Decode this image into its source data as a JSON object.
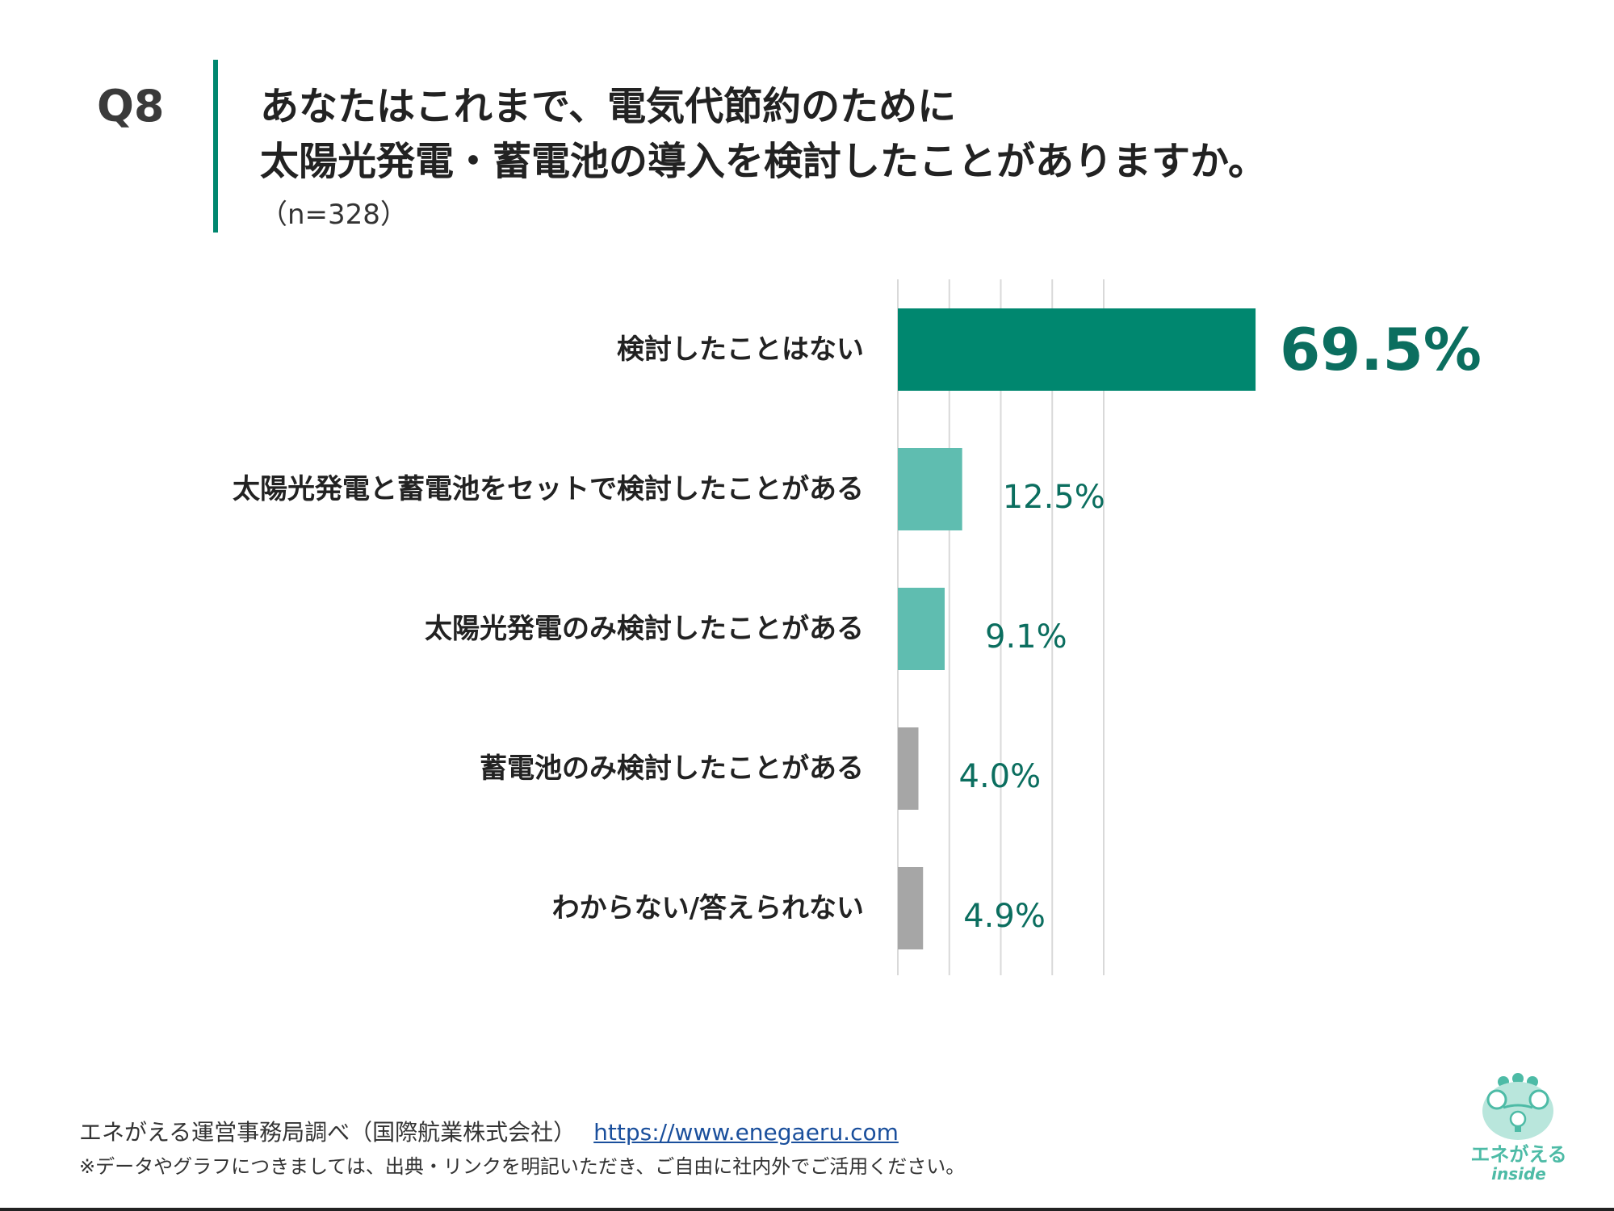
{
  "question": {
    "number": "Q8",
    "title_line1": "あなたはこれまで、電気代節約のために",
    "title_line2": "太陽光発電・蓄電池の導入を検討したことがありますか。",
    "sample": "（n=328）"
  },
  "chart_data": {
    "type": "bar",
    "orientation": "horizontal",
    "categories": [
      "検討したことはない",
      "太陽光発電と蓄電池をセットで検討したことがある",
      "太陽光発電のみ検討したことがある",
      "蓄電池のみ検討したことがある",
      "わからない/答えられない"
    ],
    "values": [
      69.5,
      12.5,
      9.1,
      4.0,
      4.9
    ],
    "value_labels": [
      "69.5%",
      "12.5%",
      "9.1%",
      "4.0%",
      "4.9%"
    ],
    "xlim": [
      0,
      80
    ],
    "grid": true,
    "bar_colors": [
      "#00876f",
      "#5fbdb0",
      "#5fbdb0",
      "#a6a6a6",
      "#a6a6a6"
    ],
    "label_color": "#0b6e5f"
  },
  "footer": {
    "source": "エネがえる運営事務局調べ（国際航業株式会社）",
    "link": "https://www.enegaeru.com",
    "note": "※データやグラフにつきましては、出典・リンクを明記いただき、ご自由に社内外でご活用ください。"
  },
  "logo": {
    "name": "エネがえる",
    "sub": "inside"
  },
  "colors": {
    "accent": "#00876f",
    "logo": "#4dbba6"
  },
  "icons": {
    "logo": "frog-bulb-icon"
  }
}
